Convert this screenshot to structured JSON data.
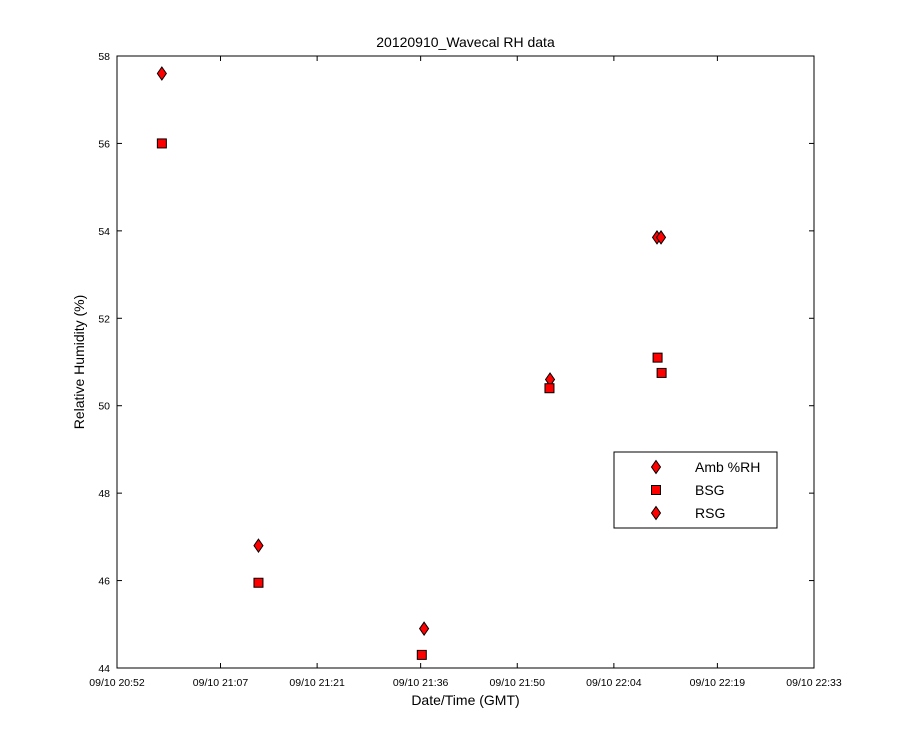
{
  "chart_data": {
    "type": "scatter",
    "title": "20120910_Wavecal RH data",
    "xlabel": "Date/Time (GMT)",
    "ylabel": "Relative Humidity (%)",
    "xlim": [
      "2012-09-10T20:52",
      "2012-09-10T22:33"
    ],
    "ylim": [
      44,
      58
    ],
    "x_ticks": [
      {
        "value": "2012-09-10T20:52",
        "label": "09/10 20:52"
      },
      {
        "value": "2012-09-10T21:07",
        "label": "09/10 21:07"
      },
      {
        "value": "2012-09-10T21:21",
        "label": "09/10 21:21"
      },
      {
        "value": "2012-09-10T21:36",
        "label": "09/10 21:36"
      },
      {
        "value": "2012-09-10T21:50",
        "label": "09/10 21:50"
      },
      {
        "value": "2012-09-10T22:04",
        "label": "09/10 22:04"
      },
      {
        "value": "2012-09-10T22:19",
        "label": "09/10 22:19"
      },
      {
        "value": "2012-09-10T22:33",
        "label": "09/10 22:33"
      }
    ],
    "y_ticks": [
      44,
      46,
      48,
      50,
      52,
      54,
      56,
      58
    ],
    "grid": false,
    "legend_position": "center-right",
    "series": [
      {
        "name": "Amb %RH",
        "marker": "diamond",
        "color": "#ff0000",
        "points": [
          {
            "x": "2012-09-10T20:58:30",
            "y": 57.6
          },
          {
            "x": "2012-09-10T21:12:30",
            "y": 46.8
          },
          {
            "x": "2012-09-10T21:36:30",
            "y": 44.9
          },
          {
            "x": "2012-09-10T21:54:45",
            "y": 50.6
          },
          {
            "x": "2012-09-10T22:10:15",
            "y": 53.85
          },
          {
            "x": "2012-09-10T22:10:50",
            "y": 53.85
          }
        ]
      },
      {
        "name": "BSG",
        "marker": "square",
        "color": "#ff0000",
        "points": [
          {
            "x": "2012-09-10T20:58:30",
            "y": 56.0
          },
          {
            "x": "2012-09-10T21:12:30",
            "y": 45.95
          },
          {
            "x": "2012-09-10T21:36:10",
            "y": 44.3
          },
          {
            "x": "2012-09-10T21:54:40",
            "y": 50.4
          },
          {
            "x": "2012-09-10T22:10:20",
            "y": 51.1
          },
          {
            "x": "2012-09-10T22:10:55",
            "y": 50.75
          }
        ]
      },
      {
        "name": "RSG",
        "marker": "diamond",
        "color": "#ff0000",
        "points": []
      }
    ]
  }
}
